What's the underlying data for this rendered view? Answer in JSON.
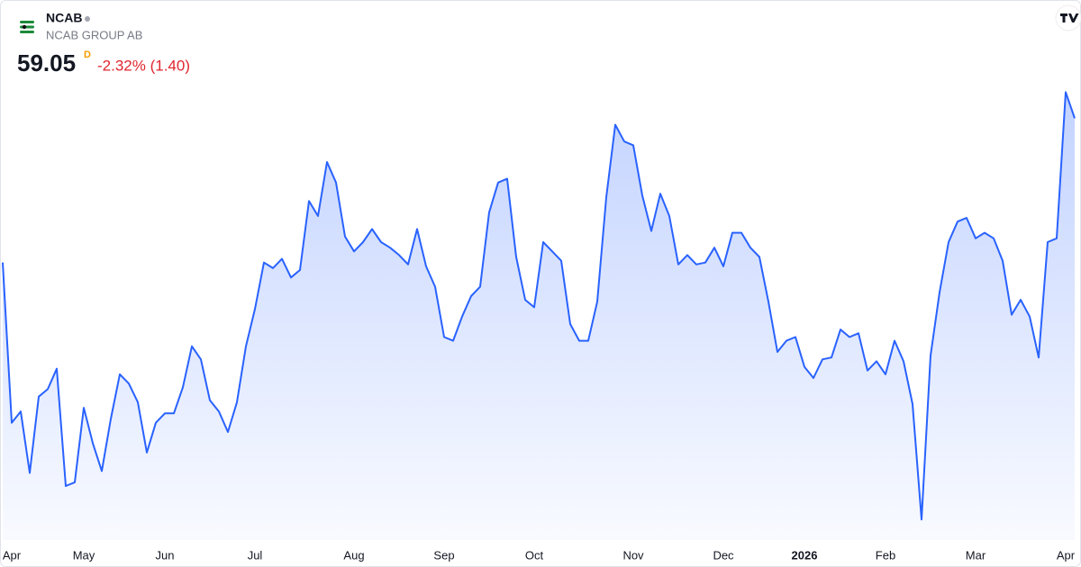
{
  "chart_data": {
    "type": "area",
    "title": "NCAB",
    "subtitle": "NCAB GROUP AB",
    "price": 59.05,
    "interval": "D",
    "change": "-2.32% (1.40)",
    "categories": [
      null,
      "Apr",
      null,
      null,
      null,
      null,
      null,
      null,
      null,
      "May",
      null,
      null,
      null,
      null,
      null,
      null,
      null,
      null,
      "Jun",
      null,
      null,
      null,
      null,
      null,
      null,
      null,
      null,
      null,
      "Jul",
      null,
      null,
      null,
      null,
      null,
      null,
      null,
      null,
      null,
      null,
      "Aug",
      null,
      null,
      null,
      null,
      null,
      null,
      null,
      null,
      null,
      "Sep",
      null,
      null,
      null,
      null,
      null,
      null,
      null,
      null,
      null,
      "Oct",
      null,
      null,
      null,
      null,
      null,
      null,
      null,
      null,
      null,
      null,
      "Nov",
      null,
      null,
      null,
      null,
      null,
      null,
      null,
      null,
      null,
      "Dec",
      null,
      null,
      null,
      null,
      null,
      null,
      null,
      null,
      "2026",
      null,
      null,
      null,
      null,
      null,
      null,
      null,
      null,
      "Feb",
      null,
      null,
      null,
      null,
      null,
      null,
      null,
      null,
      null,
      "Mar",
      null,
      null,
      null,
      null,
      null,
      null,
      null,
      null,
      null,
      "Apr",
      null
    ],
    "series": [
      {
        "name": "NCAB",
        "color": "#2962ff",
        "values": [
          51.3,
          42.7,
          43.3,
          40.0,
          44.1,
          44.5,
          45.6,
          39.3,
          39.5,
          43.5,
          41.6,
          40.1,
          42.9,
          45.3,
          44.8,
          43.8,
          41.1,
          42.7,
          43.2,
          43.2,
          44.6,
          46.8,
          46.1,
          43.9,
          43.3,
          42.2,
          43.8,
          46.8,
          48.8,
          51.3,
          51.0,
          51.5,
          50.5,
          50.9,
          54.6,
          53.8,
          56.7,
          55.6,
          52.7,
          51.9,
          52.4,
          53.1,
          52.4,
          52.1,
          51.7,
          51.2,
          53.1,
          51.1,
          50.0,
          47.3,
          47.1,
          48.4,
          49.5,
          50.0,
          54.0,
          55.6,
          55.8,
          51.6,
          49.3,
          48.9,
          52.4,
          51.9,
          51.4,
          48.0,
          47.1,
          47.1,
          49.2,
          54.8,
          58.7,
          57.8,
          57.6,
          54.9,
          53.0,
          55.0,
          53.8,
          51.2,
          51.7,
          51.2,
          51.3,
          52.1,
          51.1,
          52.9,
          52.9,
          52.1,
          51.6,
          49.2,
          46.5,
          47.1,
          47.3,
          45.7,
          45.1,
          46.1,
          46.2,
          47.7,
          47.3,
          47.5,
          45.5,
          46.0,
          45.3,
          47.1,
          46.0,
          43.7,
          37.5,
          46.3,
          49.7,
          52.4,
          53.5,
          53.7,
          52.6,
          52.9,
          52.6,
          51.4,
          48.5,
          49.3,
          48.4,
          46.2,
          52.4,
          52.6,
          60.45,
          59.05
        ]
      }
    ],
    "ylim": [
      36.4,
      65.4
    ]
  }
}
